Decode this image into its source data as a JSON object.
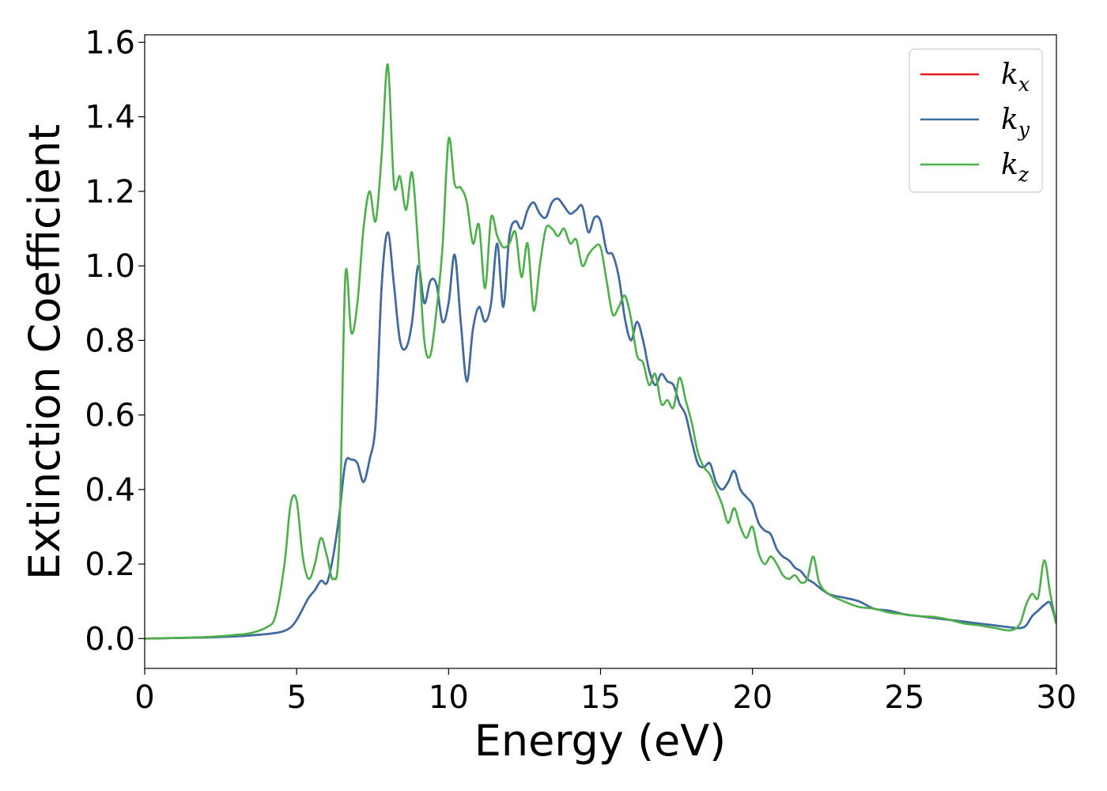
{
  "chart_data": {
    "type": "line",
    "xlabel": "Energy (eV)",
    "ylabel": "Extinction Coefficient",
    "xlim": [
      0,
      30
    ],
    "ylim": [
      -0.08,
      1.62
    ],
    "xticks": [
      0,
      5,
      10,
      15,
      20,
      25,
      30
    ],
    "xtick_labels": [
      "0",
      "5",
      "10",
      "15",
      "20",
      "25",
      "30"
    ],
    "yticks": [
      0.0,
      0.2,
      0.4,
      0.6,
      0.8,
      1.0,
      1.2,
      1.4,
      1.6
    ],
    "ytick_labels": [
      "0.0",
      "0.2",
      "0.4",
      "0.6",
      "0.8",
      "1.0",
      "1.2",
      "1.4",
      "1.6"
    ],
    "grid": false,
    "legend_position": "top-right",
    "series": [
      {
        "name": "x",
        "legend_base": "k",
        "legend_sub": "x",
        "color": "#e41a1c",
        "x": [
          0,
          2,
          3,
          4,
          4.5,
          4.8,
          5.0,
          5.2,
          5.4,
          5.6,
          5.8,
          6.0,
          6.2,
          6.4,
          6.6,
          6.8,
          7.0,
          7.2,
          7.4,
          7.6,
          7.8,
          8.0,
          8.2,
          8.4,
          8.6,
          8.8,
          9.0,
          9.2,
          9.4,
          9.6,
          9.8,
          10.0,
          10.2,
          10.4,
          10.6,
          10.8,
          11.0,
          11.2,
          11.4,
          11.6,
          11.8,
          12.0,
          12.2,
          12.4,
          12.6,
          12.8,
          13.0,
          13.2,
          13.4,
          13.6,
          13.8,
          14.0,
          14.2,
          14.4,
          14.6,
          14.8,
          15.0,
          15.2,
          15.4,
          15.6,
          15.8,
          16.0,
          16.2,
          16.4,
          16.6,
          16.8,
          17.0,
          17.2,
          17.4,
          17.6,
          17.8,
          18.0,
          18.2,
          18.4,
          18.6,
          18.8,
          19.0,
          19.2,
          19.4,
          19.6,
          19.8,
          20.0,
          20.2,
          20.4,
          20.6,
          20.8,
          21.0,
          21.2,
          21.4,
          21.6,
          21.8,
          22.0,
          22.5,
          23.0,
          23.5,
          24.0,
          24.5,
          25.0,
          25.5,
          26.0,
          26.5,
          27.0,
          27.5,
          28.0,
          28.5,
          28.8,
          29.0,
          29.2,
          29.4,
          29.6,
          29.8,
          30.0
        ],
        "y": [
          0.0,
          0.003,
          0.006,
          0.012,
          0.018,
          0.03,
          0.05,
          0.08,
          0.11,
          0.13,
          0.155,
          0.15,
          0.22,
          0.33,
          0.47,
          0.48,
          0.47,
          0.42,
          0.48,
          0.58,
          0.95,
          1.09,
          0.95,
          0.8,
          0.78,
          0.85,
          1.0,
          0.9,
          0.96,
          0.95,
          0.85,
          0.9,
          1.03,
          0.85,
          0.69,
          0.83,
          0.89,
          0.85,
          0.9,
          1.06,
          0.89,
          1.08,
          1.12,
          1.1,
          1.15,
          1.17,
          1.14,
          1.13,
          1.17,
          1.18,
          1.16,
          1.14,
          1.15,
          1.16,
          1.09,
          1.13,
          1.12,
          1.04,
          1.03,
          0.97,
          0.86,
          0.8,
          0.85,
          0.8,
          0.72,
          0.68,
          0.71,
          0.69,
          0.68,
          0.63,
          0.6,
          0.53,
          0.47,
          0.46,
          0.47,
          0.42,
          0.4,
          0.42,
          0.45,
          0.4,
          0.38,
          0.36,
          0.31,
          0.29,
          0.28,
          0.24,
          0.22,
          0.21,
          0.19,
          0.18,
          0.16,
          0.15,
          0.12,
          0.11,
          0.1,
          0.08,
          0.075,
          0.065,
          0.06,
          0.055,
          0.05,
          0.045,
          0.04,
          0.035,
          0.03,
          0.028,
          0.035,
          0.06,
          0.075,
          0.09,
          0.095,
          0.04
        ]
      },
      {
        "name": "y",
        "legend_base": "k",
        "legend_sub": "y",
        "color": "#3a6ea5",
        "x": [
          0,
          2,
          3,
          4,
          4.5,
          4.8,
          5.0,
          5.2,
          5.4,
          5.6,
          5.8,
          6.0,
          6.2,
          6.4,
          6.6,
          6.8,
          7.0,
          7.2,
          7.4,
          7.6,
          7.8,
          8.0,
          8.2,
          8.4,
          8.6,
          8.8,
          9.0,
          9.2,
          9.4,
          9.6,
          9.8,
          10.0,
          10.2,
          10.4,
          10.6,
          10.8,
          11.0,
          11.2,
          11.4,
          11.6,
          11.8,
          12.0,
          12.2,
          12.4,
          12.6,
          12.8,
          13.0,
          13.2,
          13.4,
          13.6,
          13.8,
          14.0,
          14.2,
          14.4,
          14.6,
          14.8,
          15.0,
          15.2,
          15.4,
          15.6,
          15.8,
          16.0,
          16.2,
          16.4,
          16.6,
          16.8,
          17.0,
          17.2,
          17.4,
          17.6,
          17.8,
          18.0,
          18.2,
          18.4,
          18.6,
          18.8,
          19.0,
          19.2,
          19.4,
          19.6,
          19.8,
          20.0,
          20.2,
          20.4,
          20.6,
          20.8,
          21.0,
          21.2,
          21.4,
          21.6,
          21.8,
          22.0,
          22.5,
          23.0,
          23.5,
          24.0,
          24.5,
          25.0,
          25.5,
          26.0,
          26.5,
          27.0,
          27.5,
          28.0,
          28.5,
          28.8,
          29.0,
          29.2,
          29.4,
          29.6,
          29.8,
          30.0
        ],
        "y": [
          0.0,
          0.003,
          0.006,
          0.012,
          0.018,
          0.03,
          0.05,
          0.08,
          0.11,
          0.13,
          0.155,
          0.15,
          0.22,
          0.33,
          0.47,
          0.48,
          0.47,
          0.42,
          0.48,
          0.58,
          0.95,
          1.09,
          0.95,
          0.8,
          0.78,
          0.85,
          1.0,
          0.9,
          0.96,
          0.95,
          0.85,
          0.9,
          1.03,
          0.85,
          0.69,
          0.83,
          0.89,
          0.85,
          0.9,
          1.06,
          0.89,
          1.08,
          1.12,
          1.1,
          1.15,
          1.17,
          1.14,
          1.13,
          1.17,
          1.18,
          1.16,
          1.14,
          1.15,
          1.16,
          1.09,
          1.13,
          1.12,
          1.04,
          1.03,
          0.97,
          0.86,
          0.8,
          0.85,
          0.8,
          0.72,
          0.68,
          0.71,
          0.69,
          0.68,
          0.63,
          0.6,
          0.53,
          0.47,
          0.46,
          0.47,
          0.42,
          0.4,
          0.42,
          0.45,
          0.4,
          0.38,
          0.36,
          0.31,
          0.29,
          0.28,
          0.24,
          0.22,
          0.21,
          0.19,
          0.18,
          0.16,
          0.15,
          0.12,
          0.11,
          0.1,
          0.08,
          0.075,
          0.065,
          0.06,
          0.055,
          0.05,
          0.045,
          0.04,
          0.035,
          0.03,
          0.028,
          0.035,
          0.06,
          0.075,
          0.09,
          0.095,
          0.04
        ]
      },
      {
        "name": "z",
        "legend_base": "k",
        "legend_sub": "z",
        "color": "#4daf4a",
        "x": [
          0,
          2,
          3,
          3.5,
          4.0,
          4.3,
          4.6,
          4.8,
          5.0,
          5.2,
          5.4,
          5.6,
          5.8,
          6.0,
          6.2,
          6.4,
          6.6,
          6.8,
          7.0,
          7.2,
          7.4,
          7.6,
          7.8,
          8.0,
          8.2,
          8.4,
          8.6,
          8.8,
          9.0,
          9.2,
          9.4,
          9.6,
          9.8,
          10.0,
          10.2,
          10.4,
          10.6,
          10.8,
          11.0,
          11.2,
          11.4,
          11.6,
          11.8,
          12.0,
          12.2,
          12.4,
          12.6,
          12.8,
          13.0,
          13.2,
          13.4,
          13.6,
          13.8,
          14.0,
          14.2,
          14.4,
          14.6,
          14.8,
          15.0,
          15.2,
          15.4,
          15.6,
          15.8,
          16.0,
          16.2,
          16.4,
          16.6,
          16.8,
          17.0,
          17.2,
          17.4,
          17.6,
          17.8,
          18.0,
          18.2,
          18.4,
          18.6,
          18.8,
          19.0,
          19.2,
          19.4,
          19.6,
          19.8,
          20.0,
          20.2,
          20.4,
          20.6,
          20.8,
          21.0,
          21.2,
          21.4,
          21.6,
          21.8,
          22.0,
          22.2,
          22.5,
          23.0,
          23.5,
          24.0,
          24.5,
          25.0,
          25.5,
          26.0,
          26.5,
          27.0,
          27.5,
          28.0,
          28.5,
          28.8,
          29.0,
          29.2,
          29.4,
          29.6,
          29.8,
          30.0
        ],
        "y": [
          0.0,
          0.004,
          0.01,
          0.015,
          0.03,
          0.06,
          0.2,
          0.36,
          0.37,
          0.22,
          0.16,
          0.2,
          0.27,
          0.22,
          0.16,
          0.26,
          0.97,
          0.82,
          0.9,
          1.1,
          1.2,
          1.12,
          1.3,
          1.54,
          1.22,
          1.24,
          1.15,
          1.25,
          1.05,
          0.8,
          0.76,
          0.88,
          1.05,
          1.34,
          1.22,
          1.21,
          1.17,
          1.06,
          1.11,
          0.94,
          1.13,
          1.08,
          1.05,
          1.06,
          1.09,
          0.97,
          1.06,
          0.88,
          1.0,
          1.1,
          1.1,
          1.08,
          1.1,
          1.06,
          1.07,
          1.0,
          1.03,
          1.05,
          1.05,
          0.96,
          0.87,
          0.89,
          0.92,
          0.86,
          0.76,
          0.74,
          0.68,
          0.71,
          0.63,
          0.64,
          0.62,
          0.7,
          0.64,
          0.58,
          0.5,
          0.46,
          0.44,
          0.4,
          0.36,
          0.31,
          0.35,
          0.3,
          0.27,
          0.3,
          0.23,
          0.2,
          0.22,
          0.2,
          0.17,
          0.16,
          0.17,
          0.15,
          0.16,
          0.22,
          0.15,
          0.12,
          0.1,
          0.085,
          0.08,
          0.07,
          0.065,
          0.06,
          0.058,
          0.05,
          0.04,
          0.035,
          0.028,
          0.022,
          0.04,
          0.09,
          0.12,
          0.11,
          0.21,
          0.12,
          0.04
        ]
      }
    ]
  }
}
